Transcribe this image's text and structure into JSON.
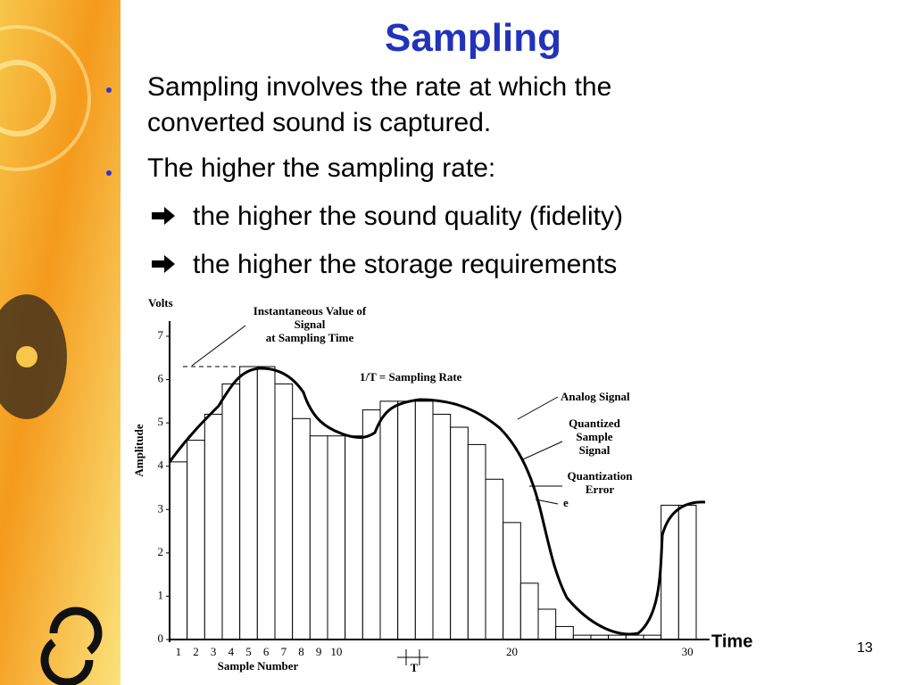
{
  "slide": {
    "title": "Sampling",
    "bullets": [
      "Sampling involves the rate at which the converted sound is captured.",
      "The higher the sampling rate:"
    ],
    "sub_bullets": [
      "the higher the sound quality (fidelity)",
      "the higher the storage requirements"
    ],
    "page_number": "13"
  },
  "chart_data": {
    "type": "bar",
    "y_unit": "Volts",
    "y_label": "Amplitude",
    "x_label": "Sample Number",
    "period_label": "T",
    "time_label": "Time",
    "annotations": {
      "instantaneous": [
        "Instantaneous Value of",
        "Signal",
        "at Sampling Time"
      ],
      "rate": "1/T = Sampling Rate",
      "analog": "Analog Signal",
      "quantized": [
        "Quantized",
        "Sample",
        "Signal"
      ],
      "error": [
        "Quantization",
        "Error"
      ],
      "e": "e"
    },
    "categories": [
      "1",
      "2",
      "3",
      "4",
      "5",
      "6",
      "7",
      "8",
      "9",
      "10",
      null,
      null,
      null,
      null,
      null,
      null,
      null,
      null,
      null,
      "20",
      null,
      null,
      null,
      null,
      null,
      null,
      null,
      null,
      null,
      "30"
    ],
    "values": [
      4.1,
      4.6,
      5.2,
      5.9,
      6.3,
      6.3,
      5.9,
      5.1,
      4.7,
      4.7,
      4.7,
      5.3,
      5.5,
      5.5,
      5.5,
      5.2,
      4.9,
      4.5,
      3.7,
      2.7,
      1.3,
      0.7,
      0.3,
      0.1,
      0.1,
      0.1,
      0.1,
      0.1,
      3.1,
      3.1
    ],
    "color": "#ffffff",
    "ylim": [
      0,
      7
    ],
    "yticks": [
      0,
      1,
      2,
      3,
      4,
      5,
      6,
      7
    ]
  }
}
